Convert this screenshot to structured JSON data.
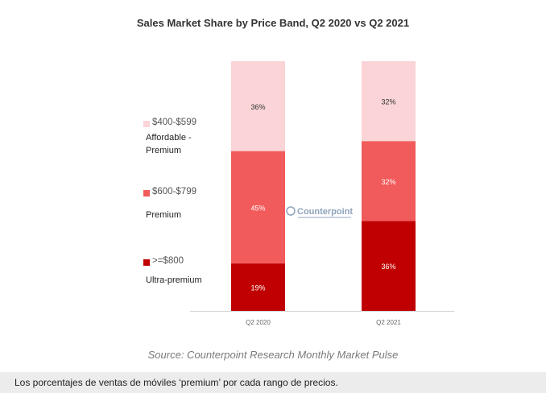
{
  "chart_data": {
    "type": "bar",
    "stacked": true,
    "title": "Sales Market Share by Price Band, Q2 2020 vs Q2 2021",
    "categories": [
      "Q2 2020",
      "Q2 2021"
    ],
    "series": [
      {
        "name": ">=$800",
        "sublabel": "Ultra-premium",
        "color": "#c00000",
        "values": [
          19,
          36
        ],
        "labels": [
          "19%",
          "36%"
        ]
      },
      {
        "name": "$600-$799",
        "sublabel": "Premium",
        "color": "#f25b5b",
        "values": [
          45,
          32
        ],
        "labels": [
          "45%",
          "32%"
        ]
      },
      {
        "name": "$400-$599",
        "sublabel": "Affordable - Premium",
        "color": "#fad4d7",
        "values": [
          36,
          32
        ],
        "labels": [
          "36%",
          "32%"
        ]
      }
    ],
    "ylim": [
      0,
      100
    ],
    "legend": "left",
    "grid": false
  },
  "watermark": {
    "text": "Counterpoint"
  },
  "source": "Source: Counterpoint Research Monthly Market Pulse",
  "caption": "Los porcentajes de ventas de móviles ‘premium’ por cada rango de precios."
}
